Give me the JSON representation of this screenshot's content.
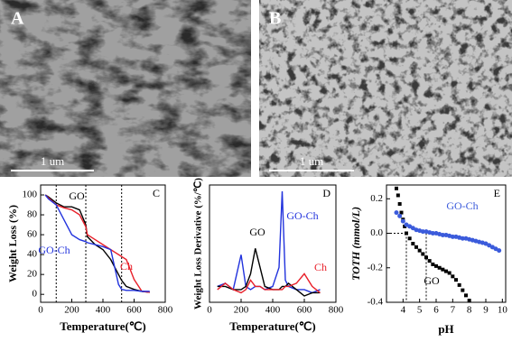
{
  "panels": [
    {
      "label": "A",
      "scale_bar": "1 um"
    },
    {
      "label": "B",
      "scale_bar": "1 um"
    }
  ],
  "chart_data": [
    {
      "type": "line",
      "panel": "C",
      "x_label": "Temperature(℃)",
      "y_label": "Weight Loss (%)",
      "x": [
        30,
        50,
        100,
        150,
        200,
        250,
        290,
        300,
        350,
        400,
        450,
        500,
        520,
        550,
        600,
        650,
        700
      ],
      "series": [
        {
          "name": "GO",
          "color": "#000000",
          "values": [
            100,
            98,
            92,
            88,
            88,
            85,
            70,
            58,
            50,
            45,
            35,
            20,
            14,
            8,
            5,
            3,
            2
          ]
        },
        {
          "name": "Ch",
          "color": "#e8202a",
          "values": [
            100,
            97,
            90,
            87,
            85,
            80,
            68,
            60,
            55,
            50,
            45,
            40,
            38,
            35,
            15,
            3,
            2
          ]
        },
        {
          "name": "GO-Ch",
          "color": "#2233dd",
          "values": [
            100,
            96,
            90,
            75,
            60,
            55,
            53,
            52,
            50,
            48,
            45,
            10,
            5,
            4,
            4,
            3,
            3
          ]
        }
      ],
      "annotations": [
        "GO",
        "GO-Ch",
        "Ch"
      ],
      "reference_x": [
        100,
        290,
        520
      ],
      "xlim": [
        0,
        800
      ],
      "xticks": [
        0,
        200,
        400,
        600,
        800
      ],
      "ylim": [
        -8,
        110
      ],
      "yticks": [
        0,
        20,
        40,
        60,
        80,
        100
      ]
    },
    {
      "type": "line",
      "panel": "D",
      "x_label": "Temperature(℃)",
      "y_label": "Weight Loss Derivative (%/℃)",
      "x": [
        50,
        100,
        150,
        200,
        230,
        260,
        290,
        320,
        350,
        400,
        440,
        460,
        480,
        500,
        550,
        600,
        650,
        700
      ],
      "series": [
        {
          "name": "GO-Ch",
          "color": "#2233dd",
          "values": [
            0.2,
            0.25,
            0.15,
            0.7,
            0.2,
            0.15,
            0.2,
            0.2,
            0.15,
            0.2,
            0.5,
            1.7,
            0.3,
            0.2,
            0.15,
            0.15,
            0.1,
            0.15
          ]
        },
        {
          "name": "GO",
          "color": "#000000",
          "values": [
            0.2,
            0.2,
            0.15,
            0.15,
            0.2,
            0.4,
            0.8,
            0.5,
            0.2,
            0.15,
            0.15,
            0.2,
            0.2,
            0.25,
            0.15,
            0.05,
            0.1,
            0.1
          ]
        },
        {
          "name": "Ch",
          "color": "#e8202a",
          "values": [
            0.15,
            0.25,
            0.15,
            0.1,
            0.15,
            0.3,
            0.2,
            0.2,
            0.15,
            0.15,
            0.15,
            0.15,
            0.2,
            0.2,
            0.25,
            0.4,
            0.2,
            0.1
          ]
        }
      ],
      "annotations": [
        "GO-Ch",
        "GO",
        "Ch"
      ],
      "xlim": [
        0,
        800
      ],
      "xticks": [
        0,
        200,
        400,
        600,
        800
      ],
      "ylim": [
        -0.05,
        1.8
      ]
    },
    {
      "type": "scatter",
      "panel": "E",
      "x_label": "pH",
      "y_label": "TOTH (mmol/L)",
      "series": [
        {
          "name": "GO",
          "color": "#000000",
          "marker": "square",
          "x": [
            3.6,
            3.7,
            3.8,
            3.9,
            4.0,
            4.1,
            4.2,
            4.4,
            4.6,
            4.8,
            5.0,
            5.2,
            5.4,
            5.6,
            5.8,
            6.0,
            6.2,
            6.4,
            6.6,
            6.8,
            7.0,
            7.2,
            7.4,
            7.6,
            7.8,
            8.0
          ],
          "values": [
            0.26,
            0.22,
            0.17,
            0.12,
            0.08,
            0.04,
            0.0,
            -0.03,
            -0.06,
            -0.08,
            -0.1,
            -0.12,
            -0.14,
            -0.16,
            -0.18,
            -0.19,
            -0.2,
            -0.21,
            -0.22,
            -0.23,
            -0.25,
            -0.27,
            -0.3,
            -0.33,
            -0.36,
            -0.39
          ]
        },
        {
          "name": "GO-Ch",
          "color": "#3b5bdb",
          "marker": "circle",
          "x": [
            3.6,
            3.8,
            4.0,
            4.2,
            4.4,
            4.6,
            4.8,
            5.0,
            5.2,
            5.4,
            5.6,
            5.8,
            6.0,
            6.2,
            6.4,
            6.6,
            6.8,
            7.0,
            7.2,
            7.4,
            7.6,
            7.8,
            8.0,
            8.2,
            8.4,
            8.6,
            8.8,
            9.0,
            9.2,
            9.4,
            9.6,
            9.8
          ],
          "values": [
            0.12,
            0.1,
            0.07,
            0.05,
            0.04,
            0.03,
            0.02,
            0.015,
            0.01,
            0.01,
            0.005,
            0,
            0,
            -0.005,
            -0.01,
            -0.01,
            -0.015,
            -0.02,
            -0.02,
            -0.025,
            -0.03,
            -0.03,
            -0.035,
            -0.04,
            -0.045,
            -0.05,
            -0.055,
            -0.06,
            -0.07,
            -0.08,
            -0.09,
            -0.1
          ]
        }
      ],
      "annotations": [
        "GO-Ch",
        "GO"
      ],
      "reference_x": [
        4.2,
        5.4
      ],
      "reference_y": [
        0
      ],
      "xlim": [
        3,
        10.2
      ],
      "xticks": [
        4,
        5,
        6,
        7,
        8,
        9,
        10
      ],
      "ylim": [
        -0.4,
        0.28
      ],
      "yticks": [
        -0.4,
        -0.2,
        {
          "value": 0,
          "label": "0.0"
        },
        0.2
      ]
    }
  ]
}
